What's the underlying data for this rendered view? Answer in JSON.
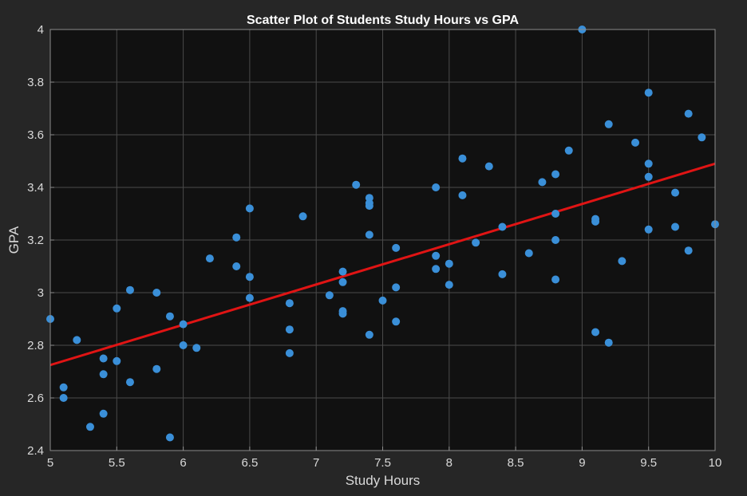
{
  "chart_data": {
    "type": "scatter",
    "title": "Scatter Plot of Students Study Hours vs GPA",
    "xlabel": "Study Hours",
    "ylabel": "GPA",
    "xlim": [
      5,
      10
    ],
    "ylim": [
      2.4,
      4.0
    ],
    "xticks": [
      5,
      5.5,
      6,
      6.5,
      7,
      7.5,
      8,
      8.5,
      9,
      9.5,
      10
    ],
    "xtick_labels": [
      "5",
      "5.5",
      "6",
      "6.5",
      "7",
      "7.5",
      "8",
      "8.5",
      "9",
      "9.5",
      "10"
    ],
    "yticks": [
      2.4,
      2.6,
      2.8,
      3.0,
      3.2,
      3.4,
      3.6,
      3.8,
      4.0
    ],
    "ytick_labels": [
      "2.4",
      "2.6",
      "2.8",
      "3",
      "3.2",
      "3.4",
      "3.6",
      "3.8",
      "4"
    ],
    "grid": true,
    "background": "#111111",
    "figure_background": "#262626",
    "marker_color": "#3a8fd8",
    "line_color": "#e01414",
    "points": [
      {
        "x": 5.0,
        "y": 2.9
      },
      {
        "x": 5.1,
        "y": 2.64
      },
      {
        "x": 5.1,
        "y": 2.6
      },
      {
        "x": 5.2,
        "y": 2.82
      },
      {
        "x": 5.3,
        "y": 2.49
      },
      {
        "x": 5.4,
        "y": 2.75
      },
      {
        "x": 5.4,
        "y": 2.69
      },
      {
        "x": 5.4,
        "y": 2.54
      },
      {
        "x": 5.5,
        "y": 2.94
      },
      {
        "x": 5.5,
        "y": 2.74
      },
      {
        "x": 5.6,
        "y": 3.01
      },
      {
        "x": 5.6,
        "y": 2.66
      },
      {
        "x": 5.8,
        "y": 3.0
      },
      {
        "x": 5.8,
        "y": 2.71
      },
      {
        "x": 5.9,
        "y": 2.91
      },
      {
        "x": 5.9,
        "y": 2.45
      },
      {
        "x": 6.0,
        "y": 2.88
      },
      {
        "x": 6.0,
        "y": 2.8
      },
      {
        "x": 6.1,
        "y": 2.79
      },
      {
        "x": 6.2,
        "y": 3.13
      },
      {
        "x": 6.4,
        "y": 3.21
      },
      {
        "x": 6.4,
        "y": 3.1
      },
      {
        "x": 6.5,
        "y": 3.32
      },
      {
        "x": 6.5,
        "y": 3.06
      },
      {
        "x": 6.5,
        "y": 2.98
      },
      {
        "x": 6.8,
        "y": 2.96
      },
      {
        "x": 6.8,
        "y": 2.86
      },
      {
        "x": 6.8,
        "y": 2.77
      },
      {
        "x": 6.9,
        "y": 3.29
      },
      {
        "x": 7.1,
        "y": 2.99
      },
      {
        "x": 7.2,
        "y": 3.08
      },
      {
        "x": 7.2,
        "y": 3.04
      },
      {
        "x": 7.2,
        "y": 2.93
      },
      {
        "x": 7.2,
        "y": 2.92
      },
      {
        "x": 7.3,
        "y": 3.41
      },
      {
        "x": 7.4,
        "y": 3.36
      },
      {
        "x": 7.4,
        "y": 3.34
      },
      {
        "x": 7.4,
        "y": 3.33
      },
      {
        "x": 7.4,
        "y": 3.22
      },
      {
        "x": 7.4,
        "y": 2.84
      },
      {
        "x": 7.5,
        "y": 2.97
      },
      {
        "x": 7.6,
        "y": 3.17
      },
      {
        "x": 7.6,
        "y": 3.02
      },
      {
        "x": 7.6,
        "y": 2.89
      },
      {
        "x": 7.9,
        "y": 3.4
      },
      {
        "x": 7.9,
        "y": 3.14
      },
      {
        "x": 7.9,
        "y": 3.09
      },
      {
        "x": 8.0,
        "y": 3.11
      },
      {
        "x": 8.0,
        "y": 3.03
      },
      {
        "x": 8.1,
        "y": 3.51
      },
      {
        "x": 8.1,
        "y": 3.37
      },
      {
        "x": 8.2,
        "y": 3.19
      },
      {
        "x": 8.3,
        "y": 3.48
      },
      {
        "x": 8.4,
        "y": 3.25
      },
      {
        "x": 8.4,
        "y": 3.07
      },
      {
        "x": 8.6,
        "y": 3.15
      },
      {
        "x": 8.7,
        "y": 3.42
      },
      {
        "x": 8.8,
        "y": 3.45
      },
      {
        "x": 8.8,
        "y": 3.3
      },
      {
        "x": 8.8,
        "y": 3.2
      },
      {
        "x": 8.8,
        "y": 3.05
      },
      {
        "x": 8.9,
        "y": 3.54
      },
      {
        "x": 9.0,
        "y": 4.0
      },
      {
        "x": 9.1,
        "y": 3.28
      },
      {
        "x": 9.1,
        "y": 3.27
      },
      {
        "x": 9.1,
        "y": 2.85
      },
      {
        "x": 9.2,
        "y": 3.64
      },
      {
        "x": 9.2,
        "y": 2.81
      },
      {
        "x": 9.3,
        "y": 3.12
      },
      {
        "x": 9.4,
        "y": 3.57
      },
      {
        "x": 9.5,
        "y": 3.76
      },
      {
        "x": 9.5,
        "y": 3.49
      },
      {
        "x": 9.5,
        "y": 3.44
      },
      {
        "x": 9.5,
        "y": 3.24
      },
      {
        "x": 9.7,
        "y": 3.38
      },
      {
        "x": 9.7,
        "y": 3.25
      },
      {
        "x": 9.8,
        "y": 3.68
      },
      {
        "x": 9.8,
        "y": 3.16
      },
      {
        "x": 9.9,
        "y": 3.59
      },
      {
        "x": 10.0,
        "y": 3.26
      }
    ],
    "fit_line": {
      "x": [
        5,
        10
      ],
      "y": [
        2.725,
        3.49
      ]
    }
  }
}
